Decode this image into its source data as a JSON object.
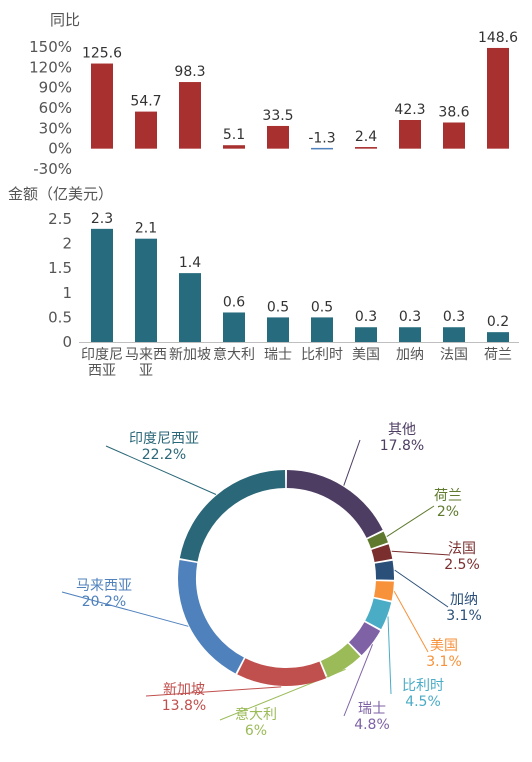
{
  "chart_data": [
    {
      "type": "bar",
      "ylabel": "同比",
      "categories": [
        "印度尼西亚",
        "马来西亚",
        "新加坡",
        "意大利",
        "瑞士",
        "比利时",
        "美国",
        "加纳",
        "法国",
        "荷兰"
      ],
      "values": [
        125.6,
        54.7,
        98.3,
        5.1,
        33.5,
        -1.3,
        2.4,
        42.3,
        38.6,
        148.6
      ],
      "data_labels": [
        "125.6",
        "54.7",
        "98.3",
        "5.1",
        "33.5",
        "-1.3",
        "2.4",
        "42.3",
        "38.6",
        "148.6"
      ],
      "ylim": [
        -30,
        150
      ],
      "y_ticks": [
        "150%",
        "120%",
        "90%",
        "60%",
        "30%",
        "0%",
        "-30%"
      ],
      "color": "#A8312F",
      "grid": false
    },
    {
      "type": "bar",
      "ylabel": "金额（亿美元）",
      "categories": [
        "印度尼西亚",
        "马来西亚",
        "新加坡",
        "意大利",
        "瑞士",
        "比利时",
        "美国",
        "加纳",
        "法国",
        "荷兰"
      ],
      "category_labels": [
        [
          "印度尼",
          "西亚"
        ],
        [
          "马来西",
          "亚"
        ],
        [
          "新加坡"
        ],
        [
          "意大利"
        ],
        [
          "瑞士"
        ],
        [
          "比利时"
        ],
        [
          "美国"
        ],
        [
          "加纳"
        ],
        [
          "法国"
        ],
        [
          "荷兰"
        ]
      ],
      "values": [
        2.3,
        2.1,
        1.4,
        0.6,
        0.5,
        0.5,
        0.3,
        0.3,
        0.3,
        0.2
      ],
      "data_labels": [
        "2.3",
        "2.1",
        "1.4",
        "0.6",
        "0.5",
        "0.5",
        "0.3",
        "0.3",
        "0.3",
        "0.2"
      ],
      "ylim": [
        0,
        2.5
      ],
      "y_ticks": [
        "2.5",
        "2",
        "1.5",
        "1",
        "0.5",
        "0"
      ],
      "color": "#276C7E",
      "grid": false
    },
    {
      "type": "pie",
      "donut": true,
      "slices": [
        {
          "label": "其他",
          "value": 17.8,
          "text": "17.8%",
          "color": "#4E3D63"
        },
        {
          "label": "荷兰",
          "value": 2.0,
          "text": "2%",
          "color": "#5F7A2E"
        },
        {
          "label": "法国",
          "value": 2.5,
          "text": "2.5%",
          "color": "#7A2E2E"
        },
        {
          "label": "加纳",
          "value": 3.1,
          "text": "3.1%",
          "color": "#2A4F78"
        },
        {
          "label": "美国",
          "value": 3.1,
          "text": "3.1%",
          "color": "#F7923A"
        },
        {
          "label": "比利时",
          "value": 4.5,
          "text": "4.5%",
          "color": "#4BACC6"
        },
        {
          "label": "瑞士",
          "value": 4.8,
          "text": "4.8%",
          "color": "#7F62A6"
        },
        {
          "label": "意大利",
          "value": 6.0,
          "text": "6%",
          "color": "#9BBB59"
        },
        {
          "label": "新加坡",
          "value": 13.8,
          "text": "13.8%",
          "color": "#C0504D"
        },
        {
          "label": "马来西亚",
          "value": 20.2,
          "text": "20.2%",
          "color": "#4F81BD"
        },
        {
          "label": "印度尼西亚",
          "value": 22.2,
          "text": "22.2%",
          "color": "#2A6778"
        }
      ],
      "legend": "none"
    }
  ]
}
